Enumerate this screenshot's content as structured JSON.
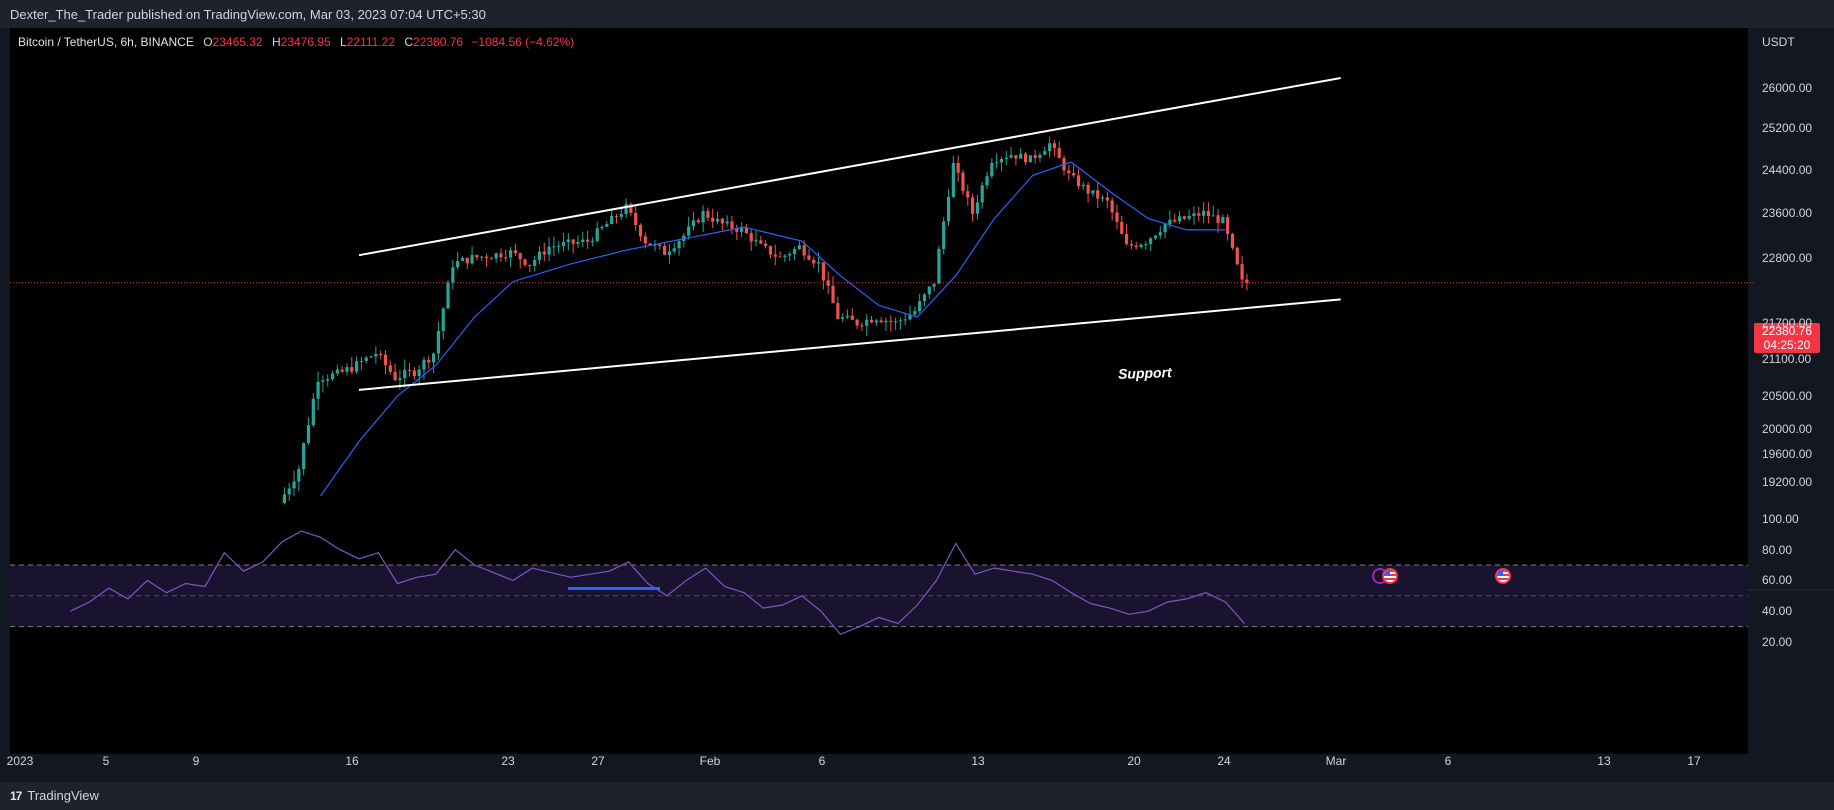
{
  "publisher_line": "Dexter_The_Trader published on TradingView.com, Mar 03, 2023 07:04 UTC+5:30",
  "brand": {
    "logo": "17",
    "name": "TradingView"
  },
  "symbol": {
    "title": "Bitcoin / TetherUS, 6h, BINANCE",
    "open_label": "O",
    "open": "23465.32",
    "high_label": "H",
    "high": "23476.95",
    "low_label": "L",
    "low": "22111.22",
    "close_label": "C",
    "close": "22380.76",
    "change": "−1084.56 (−4.62%)"
  },
  "currency": "USDT",
  "price_badge": {
    "price": "22380.76",
    "countdown": "04:25:20"
  },
  "annotation": "Support",
  "colors": {
    "background": "#000000",
    "up": "#26a69a",
    "down": "#ef5350",
    "ma": "#2962ff",
    "rsi": "#7e57c2",
    "channel": "#ffffff",
    "current_price_line": "#f23645"
  },
  "chart_data": [
    {
      "type": "candlestick",
      "title": "",
      "interval": "6h",
      "exchange": "BINANCE",
      "y_ticks": [
        19200,
        19600,
        20000,
        20500,
        21100,
        21700,
        22800,
        23600,
        24400,
        25200,
        26000
      ],
      "y_tick_labels": [
        "19200.00",
        "19600.00",
        "20000.00",
        "20500.00",
        "21100.00",
        "21700.00",
        "22800.00",
        "23600.00",
        "24400.00",
        "25200.00",
        "26000.00"
      ],
      "x_tick_labels": [
        "2023",
        "5",
        "9",
        "16",
        "23",
        "27",
        "Feb",
        "6",
        "13",
        "20",
        "24",
        "Mar",
        "6",
        "13",
        "17"
      ],
      "series": [
        {
          "kind": "price_path",
          "points": [
            [
              "2023-01-12",
              18900
            ],
            [
              "2023-01-13",
              19400
            ],
            [
              "2023-01-14",
              20800
            ],
            [
              "2023-01-15",
              20850
            ],
            [
              "2023-01-16",
              21000
            ],
            [
              "2023-01-17",
              21200
            ],
            [
              "2023-01-18",
              20800
            ],
            [
              "2023-01-19",
              20900
            ],
            [
              "2023-01-20",
              21200
            ],
            [
              "2023-01-21",
              22700
            ],
            [
              "2023-01-22",
              22800
            ],
            [
              "2023-01-23",
              22850
            ],
            [
              "2023-01-24",
              22900
            ],
            [
              "2023-01-25",
              22700
            ],
            [
              "2023-01-26",
              23000
            ],
            [
              "2023-01-27",
              23050
            ],
            [
              "2023-01-28",
              23100
            ],
            [
              "2023-01-29",
              23400
            ],
            [
              "2023-01-30",
              23700
            ],
            [
              "2023-01-31",
              23100
            ],
            [
              "2023-02-01",
              22900
            ],
            [
              "2023-02-02",
              23200
            ],
            [
              "2023-02-03",
              23600
            ],
            [
              "2023-02-04",
              23400
            ],
            [
              "2023-02-05",
              23300
            ],
            [
              "2023-02-06",
              23000
            ],
            [
              "2023-02-07",
              22800
            ],
            [
              "2023-02-08",
              23000
            ],
            [
              "2023-02-09",
              22700
            ],
            [
              "2023-02-10",
              21800
            ],
            [
              "2023-02-11",
              21700
            ],
            [
              "2023-02-12",
              21800
            ],
            [
              "2023-02-13",
              21700
            ],
            [
              "2023-02-14",
              21900
            ],
            [
              "2023-02-15",
              22400
            ],
            [
              "2023-02-16",
              24500
            ],
            [
              "2023-02-17",
              23600
            ],
            [
              "2023-02-18",
              24600
            ],
            [
              "2023-02-19",
              24700
            ],
            [
              "2023-02-20",
              24600
            ],
            [
              "2023-02-21",
              24900
            ],
            [
              "2023-02-22",
              24300
            ],
            [
              "2023-02-23",
              24000
            ],
            [
              "2023-02-24",
              23800
            ],
            [
              "2023-02-25",
              23000
            ],
            [
              "2023-02-26",
              23100
            ],
            [
              "2023-02-27",
              23400
            ],
            [
              "2023-02-28",
              23500
            ],
            [
              "2023-03-01",
              23600
            ],
            [
              "2023-03-02",
              23450
            ],
            [
              "2023-03-03",
              22380
            ]
          ]
        },
        {
          "kind": "moving_average",
          "points": [
            [
              "2023-01-14",
              19000
            ],
            [
              "2023-01-16",
              19800
            ],
            [
              "2023-01-18",
              20500
            ],
            [
              "2023-01-20",
              21000
            ],
            [
              "2023-01-22",
              21800
            ],
            [
              "2023-01-24",
              22400
            ],
            [
              "2023-01-27",
              22700
            ],
            [
              "2023-01-30",
              22950
            ],
            [
              "2023-02-02",
              23150
            ],
            [
              "2023-02-05",
              23350
            ],
            [
              "2023-02-08",
              23100
            ],
            [
              "2023-02-10",
              22500
            ],
            [
              "2023-02-12",
              22000
            ],
            [
              "2023-02-14",
              21800
            ],
            [
              "2023-02-16",
              22500
            ],
            [
              "2023-02-18",
              23500
            ],
            [
              "2023-02-20",
              24300
            ],
            [
              "2023-02-22",
              24550
            ],
            [
              "2023-02-24",
              24000
            ],
            [
              "2023-02-26",
              23500
            ],
            [
              "2023-02-28",
              23300
            ],
            [
              "2023-03-02",
              23300
            ]
          ]
        },
        {
          "kind": "channel_top",
          "points": [
            [
              "2023-01-16",
              22850
            ],
            [
              "2023-03-08",
              26200
            ]
          ]
        },
        {
          "kind": "channel_bottom",
          "points": [
            [
              "2023-01-16",
              20600
            ],
            [
              "2023-03-08",
              22100
            ]
          ]
        },
        {
          "kind": "current_price",
          "value": 22380.76
        }
      ]
    },
    {
      "type": "line",
      "title": "",
      "y_ticks": [
        20,
        40,
        60,
        80,
        100
      ],
      "y_tick_labels": [
        "20.00",
        "40.00",
        "60.00",
        "80.00",
        "100.00"
      ],
      "bands": [
        30,
        50,
        70
      ],
      "series": [
        {
          "kind": "rsi",
          "points": [
            [
              "2023-01-01",
              40
            ],
            [
              "2023-01-02",
              46
            ],
            [
              "2023-01-03",
              55
            ],
            [
              "2023-01-04",
              48
            ],
            [
              "2023-01-05",
              60
            ],
            [
              "2023-01-06",
              52
            ],
            [
              "2023-01-07",
              58
            ],
            [
              "2023-01-08",
              56
            ],
            [
              "2023-01-09",
              78
            ],
            [
              "2023-01-10",
              66
            ],
            [
              "2023-01-11",
              72
            ],
            [
              "2023-01-12",
              85
            ],
            [
              "2023-01-13",
              92
            ],
            [
              "2023-01-14",
              88
            ],
            [
              "2023-01-15",
              80
            ],
            [
              "2023-01-16",
              74
            ],
            [
              "2023-01-17",
              78
            ],
            [
              "2023-01-18",
              58
            ],
            [
              "2023-01-19",
              62
            ],
            [
              "2023-01-20",
              64
            ],
            [
              "2023-01-21",
              80
            ],
            [
              "2023-01-22",
              70
            ],
            [
              "2023-01-23",
              65
            ],
            [
              "2023-01-24",
              60
            ],
            [
              "2023-01-25",
              68
            ],
            [
              "2023-01-26",
              65
            ],
            [
              "2023-01-27",
              62
            ],
            [
              "2023-01-28",
              64
            ],
            [
              "2023-01-29",
              66
            ],
            [
              "2023-01-30",
              72
            ],
            [
              "2023-01-31",
              58
            ],
            [
              "2023-02-01",
              50
            ],
            [
              "2023-02-02",
              60
            ],
            [
              "2023-02-03",
              68
            ],
            [
              "2023-02-04",
              56
            ],
            [
              "2023-02-05",
              52
            ],
            [
              "2023-02-06",
              42
            ],
            [
              "2023-02-07",
              44
            ],
            [
              "2023-02-08",
              50
            ],
            [
              "2023-02-09",
              40
            ],
            [
              "2023-02-10",
              25
            ],
            [
              "2023-02-11",
              30
            ],
            [
              "2023-02-12",
              36
            ],
            [
              "2023-02-13",
              32
            ],
            [
              "2023-02-14",
              44
            ],
            [
              "2023-02-15",
              60
            ],
            [
              "2023-02-16",
              84
            ],
            [
              "2023-02-17",
              64
            ],
            [
              "2023-02-18",
              68
            ],
            [
              "2023-02-19",
              66
            ],
            [
              "2023-02-20",
              64
            ],
            [
              "2023-02-21",
              60
            ],
            [
              "2023-02-22",
              52
            ],
            [
              "2023-02-23",
              45
            ],
            [
              "2023-02-24",
              42
            ],
            [
              "2023-02-25",
              38
            ],
            [
              "2023-02-26",
              40
            ],
            [
              "2023-02-27",
              46
            ],
            [
              "2023-02-28",
              48
            ],
            [
              "2023-03-01",
              52
            ],
            [
              "2023-03-02",
              46
            ],
            [
              "2023-03-03",
              32
            ]
          ]
        }
      ]
    }
  ]
}
